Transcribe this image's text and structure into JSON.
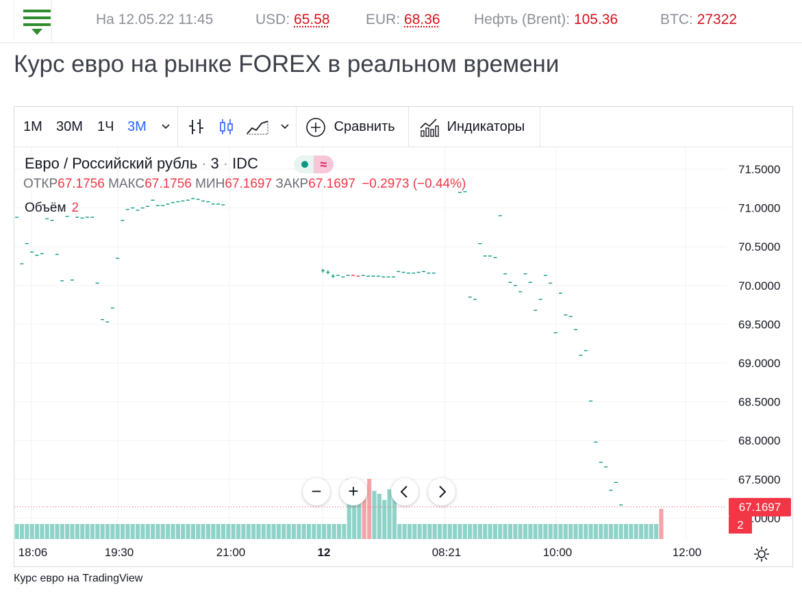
{
  "header": {
    "timestamp": "На 12.05.22 11:45",
    "tickers": [
      {
        "label": "USD:",
        "value": "65.58"
      },
      {
        "label": "EUR:",
        "value": "68.36"
      },
      {
        "label": "Нефть (Brent):",
        "value": "105.36"
      },
      {
        "label": "BTC:",
        "value": "27322"
      }
    ]
  },
  "page_title": "Курс евро на рынке FOREX в реальном времени",
  "toolbar": {
    "intervals": [
      "1M",
      "30M",
      "1Ч",
      "3M"
    ],
    "active_interval": "3M",
    "compare_label": "Сравнить",
    "indicators_label": "Индикаторы"
  },
  "legend": {
    "symbol": "Евро / Российский рубль",
    "interval": "3",
    "source": "IDC",
    "open_label": "ОТКР",
    "open": "67.1756",
    "high_label": "МАКС",
    "high": "67.1756",
    "low_label": "МИН",
    "low": "67.1697",
    "close_label": "ЗАКР",
    "close": "67.1697",
    "change": "−0.2973 (−0.44%)",
    "volume_label": "Объём",
    "volume": "2"
  },
  "price_tag": "67.1697",
  "volume_tag": "2",
  "footer_link": "Курс евро на TradingView",
  "colors": {
    "up": "#089981",
    "down": "#f23645",
    "vol_up": "#8fd3c8",
    "vol_down": "#f5a3a8",
    "accent": "#2962ff",
    "menu": "#2e8b2e"
  },
  "icons": [
    "menu-icon",
    "bar-chart-icon",
    "candles-icon",
    "area-chart-icon",
    "chevron-down-icon",
    "plus-circle-icon",
    "indicators-icon",
    "minus-icon",
    "plus-icon",
    "chevron-left-icon",
    "chevron-right-icon",
    "gear-icon"
  ],
  "chart_data": {
    "type": "line",
    "title": "Евро / Российский рубль",
    "interval": "3M",
    "ylim": [
      66.8,
      71.7
    ],
    "y_ticks": [
      67.0,
      67.5,
      68.0,
      68.5,
      69.0,
      69.5,
      70.0,
      70.5,
      71.0,
      71.5
    ],
    "y_tick_labels": [
      "67.0000",
      "67.5000",
      "68.0000",
      "68.5000",
      "69.0000",
      "69.5000",
      "70.0000",
      "70.5000",
      "71.0000",
      "71.5000"
    ],
    "x_tick_labels": [
      "18:06",
      "19:30",
      "21:00",
      "12",
      "08:21",
      "10:00",
      "12:00"
    ],
    "grid": true,
    "series": [
      {
        "segment": "evening",
        "values": [
          70.88,
          70.28,
          70.54,
          70.43,
          70.39,
          70.41,
          70.86,
          70.84,
          70.4,
          70.06,
          70.89,
          70.07,
          70.88,
          70.87,
          70.88,
          70.88,
          70.03,
          69.56,
          69.53,
          69.71,
          70.35,
          70.84,
          70.98,
          71.0,
          70.97,
          71.0,
          71.02,
          71.1,
          71.03,
          71.03,
          71.05,
          71.07,
          71.08,
          71.09,
          71.1,
          71.12,
          71.11,
          71.09,
          71.08,
          71.05,
          71.05,
          71.04
        ]
      },
      {
        "segment": "night",
        "values": [
          70.19,
          70.17,
          70.12,
          70.13,
          70.11,
          70.13,
          70.13,
          70.12,
          70.13,
          70.12,
          70.12,
          70.12,
          70.11,
          70.11,
          70.11,
          70.18,
          70.17,
          70.16,
          70.16,
          70.17,
          70.18,
          70.16,
          70.16
        ]
      },
      {
        "segment": "morning",
        "values": [
          71.2,
          71.21,
          69.85,
          69.82,
          70.54,
          70.38,
          70.38,
          70.36,
          70.9,
          70.15,
          70.04,
          70.0,
          69.92,
          70.15,
          70.04,
          69.68,
          69.82,
          70.13,
          70.03,
          69.39,
          69.9,
          69.62,
          69.6,
          69.43,
          69.1,
          69.16,
          68.51,
          67.98,
          67.72,
          67.66,
          67.36,
          67.46,
          67.17
        ]
      }
    ],
    "volume": {
      "typical": 1,
      "open_peak": [
        4,
        3.6,
        3.6,
        3.0,
        4,
        3.2,
        3.0,
        2.6,
        3.3,
        3.6
      ],
      "last": 2
    }
  }
}
